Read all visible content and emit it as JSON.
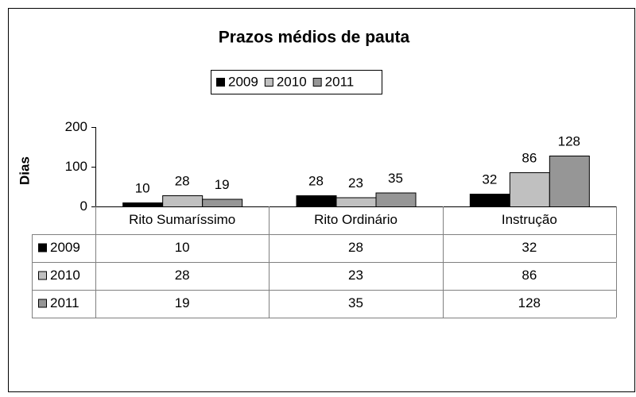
{
  "chart_data": {
    "type": "bar",
    "title": "Prazos médios de pauta",
    "ylabel": "Dias",
    "categories": [
      "Rito Sumaríssimo",
      "Rito Ordinário",
      "Instrução"
    ],
    "series": [
      {
        "name": "2009",
        "color": "#000000",
        "values": [
          10,
          28,
          32
        ]
      },
      {
        "name": "2010",
        "color": "#c0c0c0",
        "values": [
          28,
          23,
          86
        ]
      },
      {
        "name": "2011",
        "color": "#969696",
        "values": [
          19,
          35,
          128
        ]
      }
    ],
    "ylim": [
      0,
      200
    ],
    "yticks": [
      0,
      100,
      200
    ],
    "grid": false,
    "legend": "top",
    "data_table": true
  }
}
